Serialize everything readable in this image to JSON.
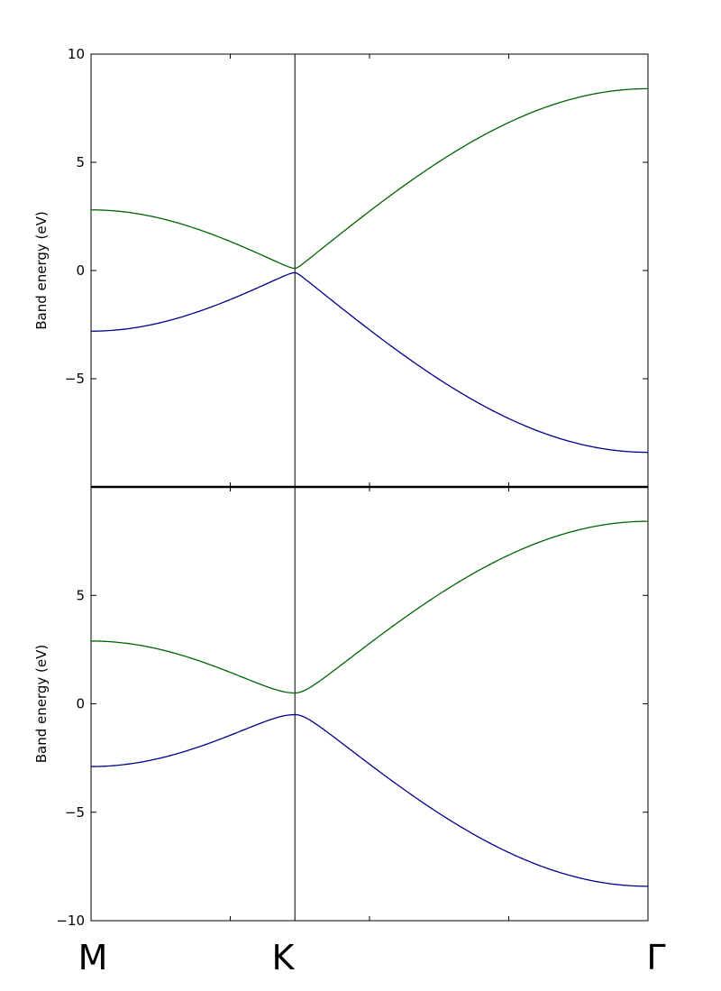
{
  "chart_data": [
    {
      "type": "line",
      "panel": "top",
      "ylabel": "Band energy (eV)",
      "ylim": [
        -10,
        10
      ],
      "yticks": [
        {
          "value": 10,
          "label": "10"
        },
        {
          "value": 5,
          "label": "5"
        },
        {
          "value": 0,
          "label": "0"
        },
        {
          "value": -5,
          "label": "−5"
        }
      ],
      "k_positions": [
        0,
        1,
        2.732
      ],
      "gap": 0.1,
      "series": [
        {
          "color": "#006400",
          "band": "upper",
          "x": [
            0,
            0.25,
            0.5,
            0.75,
            1.0,
            1.25,
            1.5,
            1.75,
            2.0,
            2.25,
            2.5,
            2.732
          ],
          "y": [
            2.8,
            2.6,
            2.0,
            1.15,
            0.1,
            1.7,
            3.3,
            4.8,
            6.1,
            7.3,
            8.1,
            8.4
          ]
        },
        {
          "color": "#00008b",
          "band": "lower",
          "x": [
            0,
            0.25,
            0.5,
            0.75,
            1.0,
            1.25,
            1.5,
            1.75,
            2.0,
            2.25,
            2.5,
            2.732
          ],
          "y": [
            -2.8,
            -2.6,
            -2.0,
            -1.15,
            -0.1,
            -1.7,
            -3.3,
            -4.8,
            -6.1,
            -7.3,
            -8.1,
            -8.4
          ]
        }
      ]
    },
    {
      "type": "line",
      "panel": "bottom",
      "ylabel": "Band energy (eV)",
      "ylim": [
        -10,
        10
      ],
      "yticks": [
        {
          "value": 5,
          "label": "5"
        },
        {
          "value": 0,
          "label": "0"
        },
        {
          "value": -5,
          "label": "−5"
        },
        {
          "value": -10,
          "label": "−10"
        }
      ],
      "k_positions": [
        0,
        1,
        2.732
      ],
      "gap": 0.5,
      "series": [
        {
          "color": "#006400",
          "band": "upper",
          "x": [
            0,
            0.25,
            0.5,
            0.75,
            1.0,
            1.25,
            1.5,
            1.75,
            2.0,
            2.25,
            2.5,
            2.732
          ],
          "y": [
            2.85,
            2.65,
            2.1,
            1.35,
            0.5,
            1.75,
            3.3,
            4.8,
            6.1,
            7.3,
            8.1,
            8.4
          ]
        },
        {
          "color": "#00008b",
          "band": "lower",
          "x": [
            0,
            0.25,
            0.5,
            0.75,
            1.0,
            1.25,
            1.5,
            1.75,
            2.0,
            2.25,
            2.5,
            2.732
          ],
          "y": [
            -2.85,
            -2.65,
            -2.1,
            -1.35,
            -0.5,
            -1.75,
            -3.3,
            -4.8,
            -6.1,
            -7.3,
            -8.1,
            -8.4
          ]
        }
      ]
    }
  ],
  "kpoints": [
    {
      "name": "M",
      "x": 0
    },
    {
      "name": "K",
      "x": 1
    },
    {
      "name": "Γ",
      "x": 2.732
    }
  ]
}
